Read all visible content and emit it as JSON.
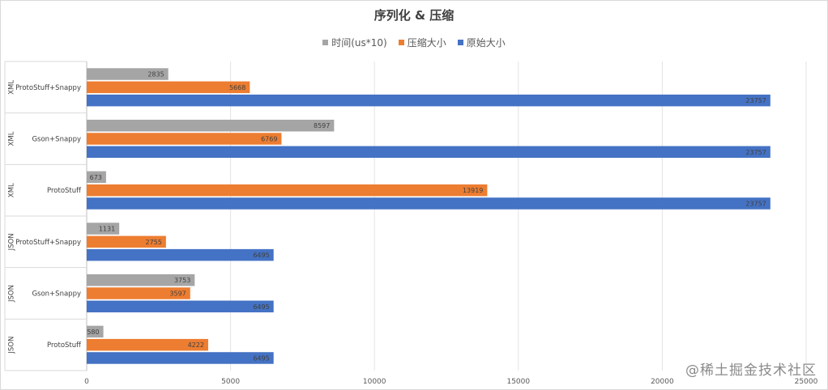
{
  "watermark": "@稀土掘金技术社区",
  "chart_data": {
    "type": "bar",
    "orientation": "horizontal",
    "title": "序列化 & 压缩",
    "legend_position": "top",
    "xlim": [
      0,
      25000
    ],
    "x_ticks": [
      0,
      5000,
      10000,
      15000,
      20000,
      25000
    ],
    "grid": true,
    "groups": [
      {
        "format": "XML",
        "method": "ProtoStuff+Snappy"
      },
      {
        "format": "XML",
        "method": "Gson+Snappy"
      },
      {
        "format": "XML",
        "method": "ProtoStuff"
      },
      {
        "format": "JSON",
        "method": "ProtoStuff+Snappy"
      },
      {
        "format": "JSON",
        "method": "Gson+Snappy"
      },
      {
        "format": "JSON",
        "method": "ProtoStuff"
      }
    ],
    "series": [
      {
        "name": "时间(us*10)",
        "color": "#a5a5a5",
        "values": [
          2835,
          8597,
          673,
          1131,
          3753,
          580
        ]
      },
      {
        "name": "压缩大小",
        "color": "#ed7d31",
        "values": [
          5668,
          6769,
          13919,
          2755,
          3597,
          4222
        ]
      },
      {
        "name": "原始大小",
        "color": "#4472c4",
        "values": [
          23757,
          23757,
          23757,
          6495,
          6495,
          6495
        ]
      }
    ],
    "value_labels": {
      "时间(us*10)": [
        "2835",
        "8597",
        "673",
        "1131",
        "3753",
        "580"
      ],
      "压缩大小": [
        "5668",
        "6769",
        "13919",
        "2755",
        "3597",
        "4222"
      ],
      "原始大小": [
        "23757",
        "23757",
        "23757",
        "6495",
        "6495",
        "6495"
      ]
    }
  }
}
